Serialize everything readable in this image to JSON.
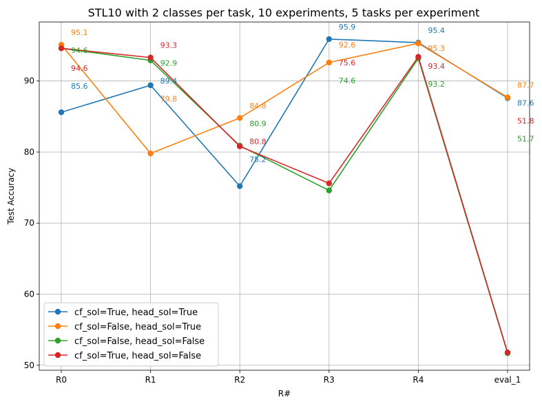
{
  "chart_data": {
    "type": "line",
    "title": "STL10 with 2 classes per task, 10 experiments, 5 tasks per experiment",
    "xlabel": "R#",
    "ylabel": "Test Accuracy",
    "categories": [
      "R0",
      "R1",
      "R2",
      "R3",
      "R4",
      "eval_1"
    ],
    "yticks": [
      50,
      60,
      70,
      80,
      90
    ],
    "ylim": [
      49.3,
      98.3
    ],
    "grid": true,
    "legend_position": "lower-left",
    "series": [
      {
        "name": "cf_sol=True, head_sol=True",
        "color": "#1f77b4",
        "values": [
          85.6,
          89.4,
          75.2,
          95.9,
          95.4,
          87.6
        ]
      },
      {
        "name": "cf_sol=False, head_sol=True",
        "color": "#ff7f0e",
        "values": [
          95.1,
          79.8,
          84.8,
          92.6,
          95.3,
          87.7
        ]
      },
      {
        "name": "cf_sol=False, head_sol=False",
        "color": "#2ca02c",
        "values": [
          94.6,
          92.9,
          80.9,
          74.6,
          93.2,
          51.7
        ]
      },
      {
        "name": "cf_sol=True, head_sol=False",
        "color": "#d62728",
        "values": [
          94.6,
          93.3,
          80.8,
          75.6,
          93.4,
          51.8
        ]
      }
    ],
    "annotations": [
      {
        "series": 0,
        "labels": [
          "85.6",
          "89.4",
          "75.2",
          "95.9",
          "95.4",
          "87.6"
        ]
      },
      {
        "series": 1,
        "labels": [
          "95.1",
          "79.8",
          "84.8",
          "92.6",
          "95.3",
          "87.7"
        ]
      },
      {
        "series": 2,
        "labels": [
          "94.6",
          "92.9",
          "80.9",
          "74.6",
          "93.2",
          "51.7"
        ]
      },
      {
        "series": 3,
        "labels": [
          "94.6",
          "93.3",
          "80.8",
          "75.6",
          "93.4",
          "51.8"
        ]
      }
    ]
  }
}
